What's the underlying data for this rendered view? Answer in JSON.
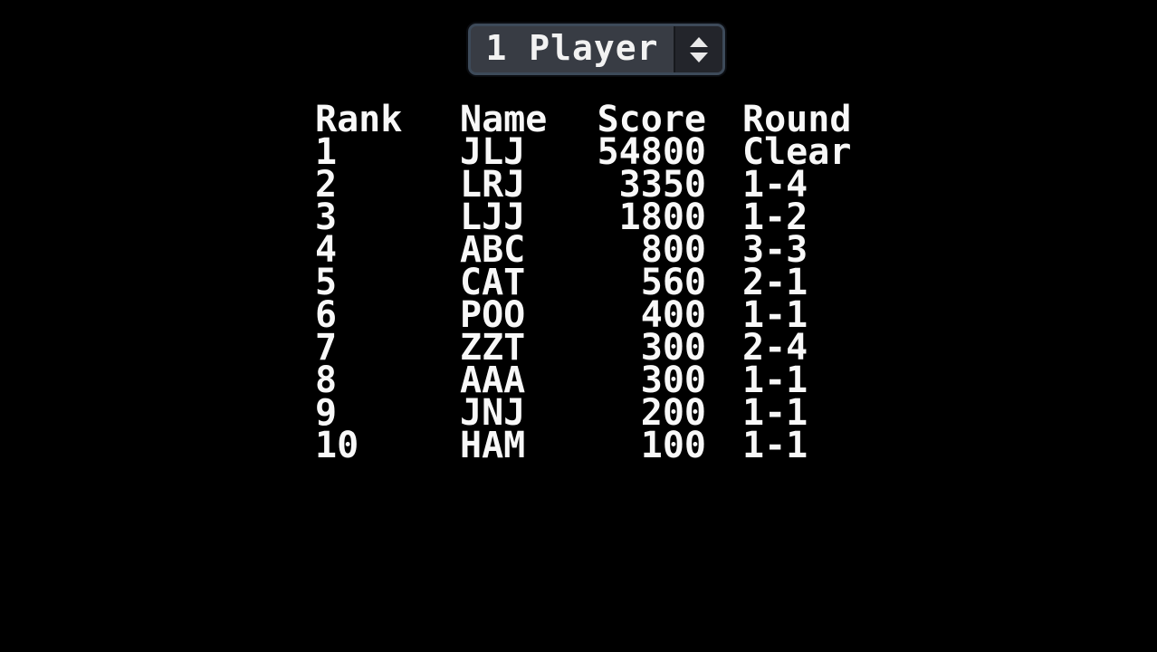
{
  "screen": {
    "background": "#000000"
  },
  "player_selector": {
    "selected_option": "1 Player",
    "colors": {
      "border": "#3d4a59",
      "label_bg": "#383c44",
      "spinner_bg": "#23252b",
      "text": "#f2f2f2",
      "arrow": "#e9e9e9"
    }
  },
  "leaderboard": {
    "text_color": "#f8f8f8",
    "headers": {
      "rank": "Rank",
      "name": "Name",
      "score": "Score",
      "round": "Round"
    },
    "rows": [
      {
        "rank": "1",
        "name": "JLJ",
        "score": "54800",
        "round": "Clear"
      },
      {
        "rank": "2",
        "name": "LRJ",
        "score": "3350",
        "round": "1-4"
      },
      {
        "rank": "3",
        "name": "LJJ",
        "score": "1800",
        "round": "1-2"
      },
      {
        "rank": "4",
        "name": "ABC",
        "score": "800",
        "round": "3-3"
      },
      {
        "rank": "5",
        "name": "CAT",
        "score": "560",
        "round": "2-1"
      },
      {
        "rank": "6",
        "name": "POO",
        "score": "400",
        "round": "1-1"
      },
      {
        "rank": "7",
        "name": "ZZT",
        "score": "300",
        "round": "2-4"
      },
      {
        "rank": "8",
        "name": "AAA",
        "score": "300",
        "round": "1-1"
      },
      {
        "rank": "9",
        "name": "JNJ",
        "score": "200",
        "round": "1-1"
      },
      {
        "rank": "10",
        "name": "HAM",
        "score": "100",
        "round": "1-1"
      }
    ]
  }
}
